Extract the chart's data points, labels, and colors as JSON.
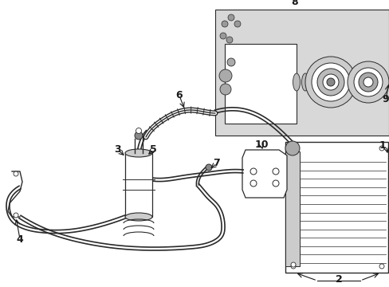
{
  "bg_color": "#ffffff",
  "lc": "#2a2a2a",
  "tc": "#1a1a1a",
  "figsize": [
    4.89,
    3.6
  ],
  "dpi": 100,
  "box_bg": "#d0d0d0",
  "fig_w": 489,
  "fig_h": 360
}
